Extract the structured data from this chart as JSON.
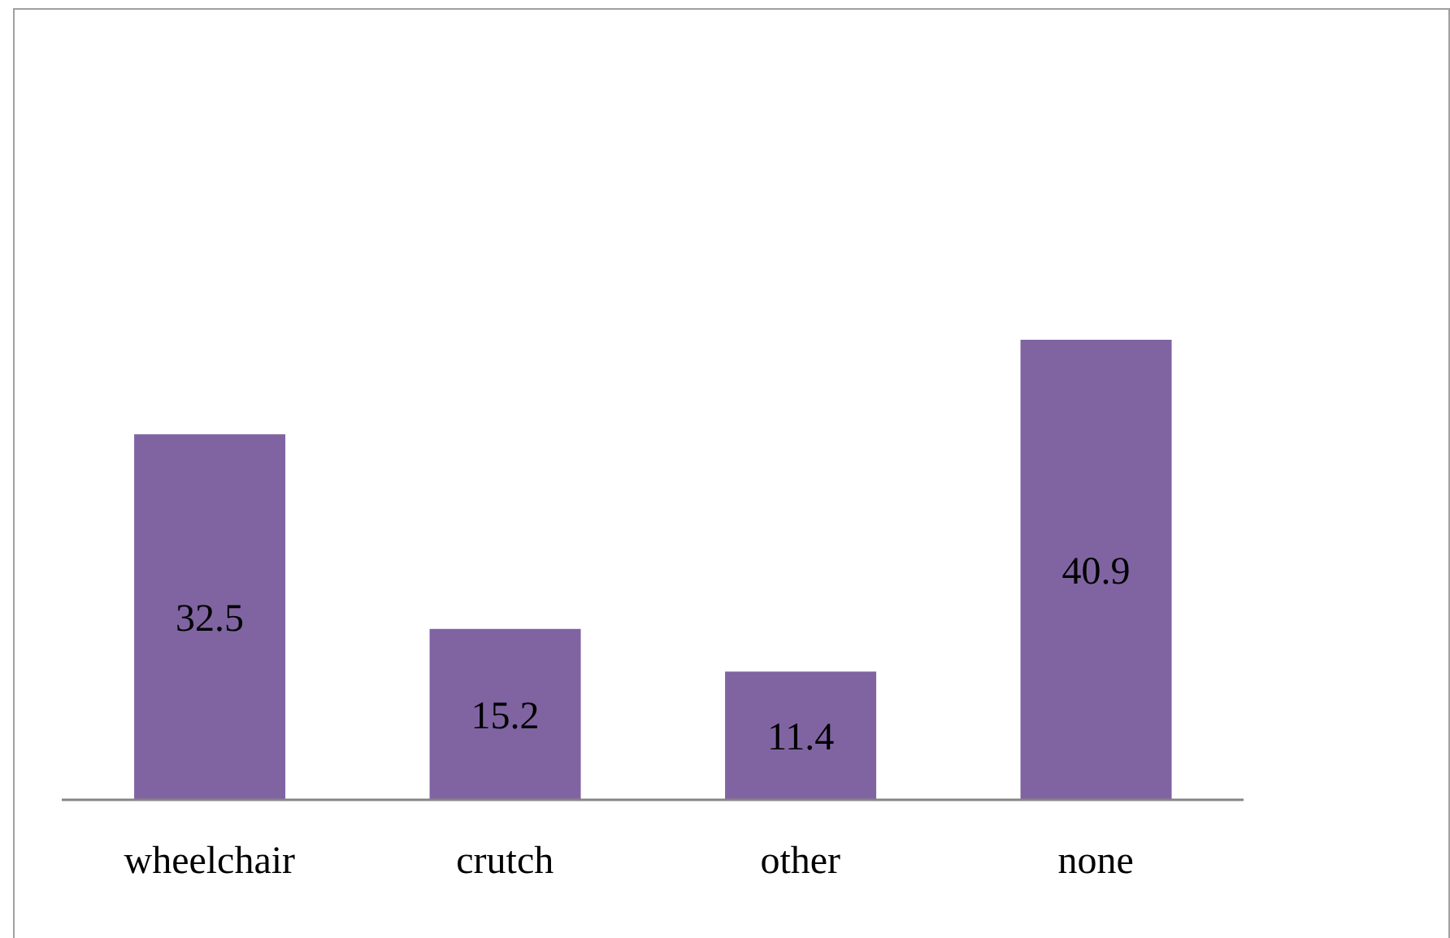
{
  "chart_data": {
    "type": "bar",
    "categories": [
      "wheelchair",
      "crutch",
      "other",
      "none"
    ],
    "values": [
      32.5,
      15.2,
      11.4,
      40.9
    ],
    "color": "#8064a2",
    "data_labels": true
  }
}
